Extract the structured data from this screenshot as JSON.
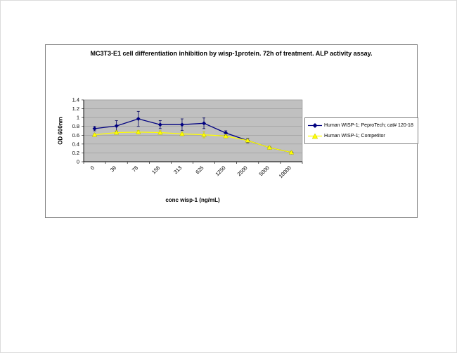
{
  "page": {
    "background": "#ffffff",
    "border_color": "#dcdcdc"
  },
  "chart": {
    "frame_border": "#808080",
    "plot_bg": "#c0c0c0",
    "grid_color": "#999999",
    "axis_color": "#000000",
    "legend_border": "#808080"
  },
  "chart_data": {
    "type": "line",
    "title": "MC3T3-E1 cell differentiation inhibition by wisp-1protein. 72h of treatment. ALP activity assay.",
    "xlabel": "conc wisp-1 (ng/mL)",
    "ylabel": "OD 600nm",
    "categories": [
      "0",
      "39",
      "78",
      "156",
      "313",
      "625",
      "1250",
      "2500",
      "5000",
      "10000"
    ],
    "ylim": [
      0,
      1.4
    ],
    "ytick_step": 0.2,
    "grid": true,
    "legend_position": "right",
    "series": [
      {
        "name": "Human WISP-1; PeproTech; cat# 120-18",
        "color": "#000080",
        "error_color": "#000060",
        "marker": "diamond",
        "values": [
          0.75,
          0.81,
          0.97,
          0.84,
          0.84,
          0.87,
          0.65,
          0.48,
          0.32,
          0.21
        ],
        "error": [
          0.05,
          0.12,
          0.17,
          0.09,
          0.13,
          0.12,
          0.05,
          0.05,
          0.03,
          0.02
        ]
      },
      {
        "name": "Human WISP-1; Competitor",
        "color": "#ffff00",
        "error_color": "#cccc00",
        "marker": "triangle",
        "values": [
          0.61,
          0.66,
          0.67,
          0.66,
          0.63,
          0.61,
          0.58,
          0.48,
          0.32,
          0.21
        ],
        "error": [
          0.03,
          0.04,
          0.04,
          0.04,
          0.04,
          0.07,
          0.03,
          0.03,
          0.03,
          0.02
        ]
      }
    ]
  }
}
